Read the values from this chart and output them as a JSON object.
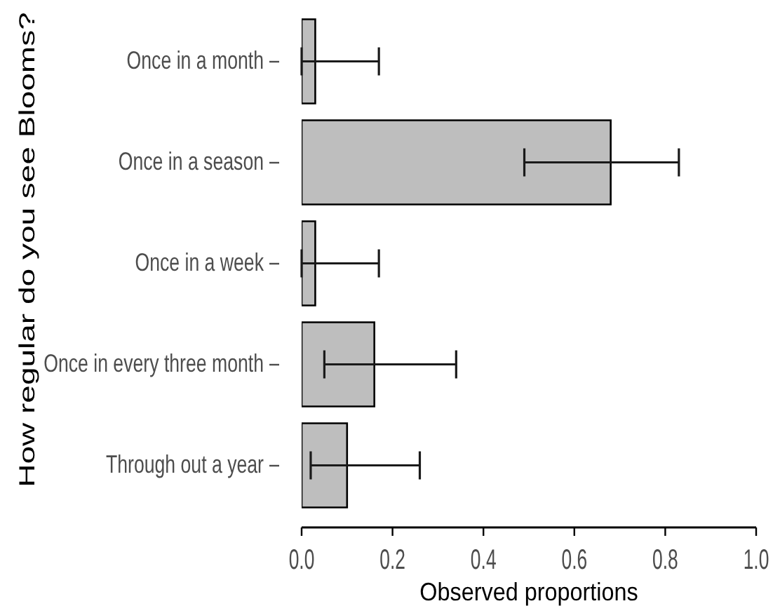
{
  "chart_data": {
    "type": "bar",
    "orientation": "horizontal",
    "categories": [
      "Once in a month",
      "Once in a season",
      "Once in a week",
      "Once in every three month",
      "Through out a year"
    ],
    "values": [
      0.03,
      0.68,
      0.03,
      0.16,
      0.1
    ],
    "errors": [
      [
        0,
        0.17
      ],
      [
        0.49,
        0.83
      ],
      [
        0,
        0.17
      ],
      [
        0.05,
        0.34
      ],
      [
        0.02,
        0.26
      ]
    ],
    "color": "#bebebe",
    "xlabel": "Observed proportions",
    "ylabel": "How regular do you see Blooms?",
    "xlim": [
      0,
      1
    ],
    "xticks": [
      {
        "value": 0,
        "label": "0.0"
      },
      0.2,
      0.4,
      0.6,
      0.8,
      {
        "value": 1,
        "label": "1.0"
      }
    ]
  }
}
